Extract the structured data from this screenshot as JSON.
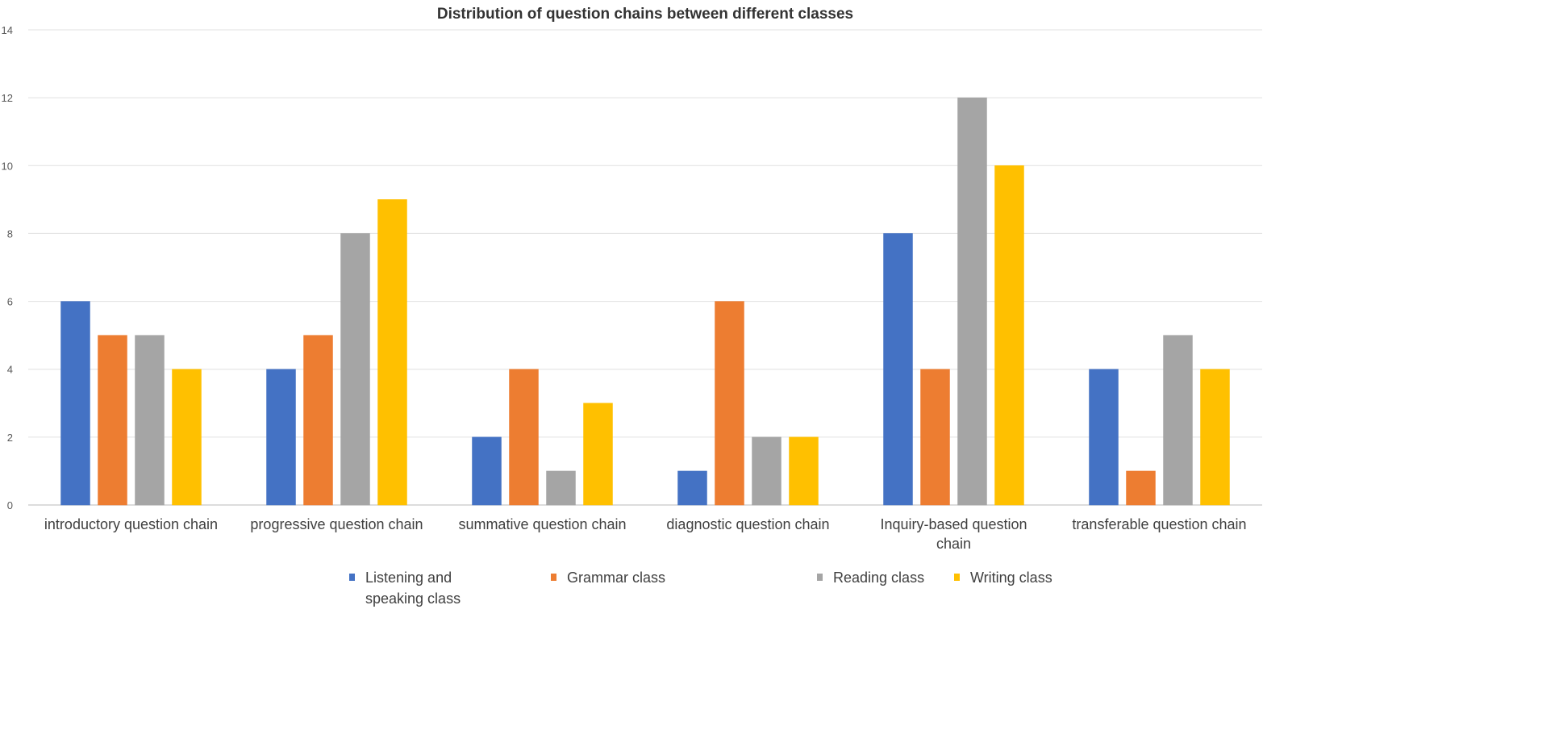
{
  "chart_data": {
    "type": "bar",
    "title": "Distribution of question chains between different classes",
    "xlabel": "",
    "ylabel": "",
    "ylim": [
      0,
      14
    ],
    "yticks": [
      0,
      2,
      4,
      6,
      8,
      10,
      12,
      14
    ],
    "grid": true,
    "legend_position": "bottom",
    "categories": [
      [
        "introductory question chain"
      ],
      [
        "progressive question chain"
      ],
      [
        "summative question chain"
      ],
      [
        "diagnostic question chain"
      ],
      [
        "Inquiry-based question",
        "chain"
      ],
      [
        "transferable question chain"
      ]
    ],
    "series": [
      {
        "name": [
          "Listening and",
          "speaking class"
        ],
        "color": "#4472C4",
        "values": [
          6,
          4,
          2,
          1,
          8,
          4
        ]
      },
      {
        "name": [
          "Grammar class"
        ],
        "color": "#ED7D31",
        "values": [
          5,
          5,
          4,
          6,
          4,
          1
        ]
      },
      {
        "name": [
          "Reading class"
        ],
        "color": "#A5A5A5",
        "values": [
          5,
          8,
          1,
          2,
          12,
          5
        ]
      },
      {
        "name": [
          "Writing class"
        ],
        "color": "#FFC000",
        "values": [
          4,
          9,
          3,
          2,
          10,
          4
        ]
      }
    ]
  }
}
